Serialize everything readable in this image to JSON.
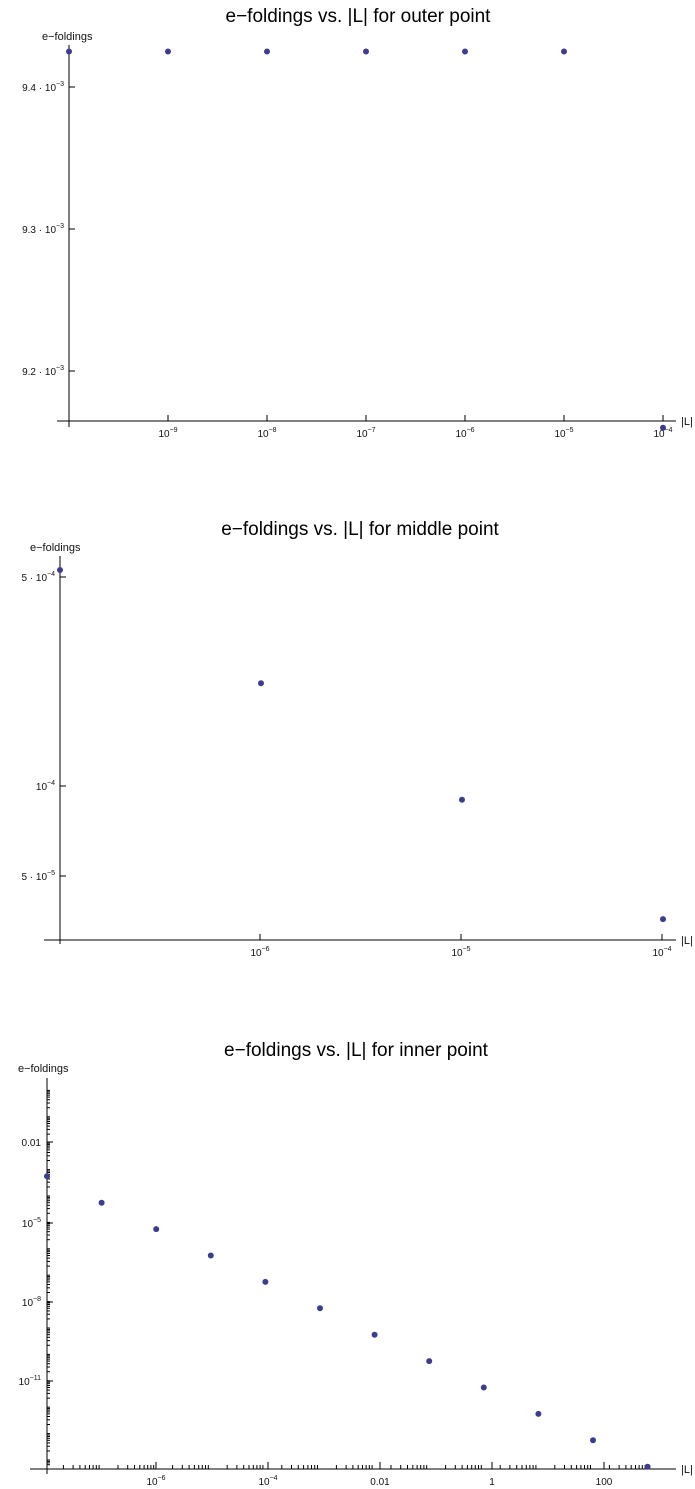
{
  "chart_data": [
    {
      "type": "scatter",
      "title": "e−foldings vs. |L| for outer point",
      "xlabel": "|L|",
      "ylabel": "e−foldings",
      "x_scale": "log",
      "y_scale": "linear",
      "x": [
        1e-10,
        1e-09,
        1e-08,
        1e-07,
        1e-06,
        1e-05,
        0.0001
      ],
      "y": [
        0.009425,
        0.009425,
        0.009425,
        0.009425,
        0.009425,
        0.009425,
        0.00916
      ],
      "xlim": [
        1e-10,
        0.0001
      ],
      "ylim": [
        0.00916,
        0.00943
      ],
      "xticks": [
        "10^-9",
        "10^-8",
        "10^-7",
        "10^-6",
        "10^-5",
        "10^-4"
      ],
      "yticks": [
        "9.2 · 10^-3",
        "9.3 · 10^-3",
        "9.4 · 10^-3"
      ],
      "marker_color": "#3d3d8f"
    },
    {
      "type": "scatter",
      "title": "e−foldings vs. |L| for middle point",
      "xlabel": "|L|",
      "ylabel": "e−foldings",
      "x_scale": "log",
      "y_scale": "log",
      "x": [
        1e-07,
        1e-06,
        1e-05,
        0.0001
      ],
      "y": [
        0.000525,
        0.00022,
        9e-05,
        3.6e-05
      ],
      "xlim": [
        1e-07,
        0.0001
      ],
      "ylim": [
        3.55e-05,
        0.00055
      ],
      "xticks": [
        "10^-6",
        "10^-5",
        "10^-4"
      ],
      "yticks": [
        "5 · 10^-5",
        "10^-4",
        "5 · 10^-4"
      ],
      "marker_color": "#3d3d8f"
    },
    {
      "type": "scatter",
      "title": "e−foldings vs. |L| for inner point",
      "xlabel": "|L|",
      "ylabel": "e−foldings",
      "x_scale": "log",
      "y_scale": "log",
      "x": [
        1e-08,
        1e-07,
        1e-06,
        1e-05,
        0.0001,
        0.001,
        0.01,
        0.1,
        1,
        10,
        100,
        1000
      ],
      "y": [
        0.0005,
        5e-05,
        5e-06,
        5e-07,
        5e-08,
        5e-09,
        5e-10,
        5e-11,
        5e-12,
        5e-13,
        5e-14,
        5e-15
      ],
      "xlim": [
        1e-08,
        1000
      ],
      "ylim": [
        5e-15,
        1
      ],
      "xticks": [
        "10^-6",
        "10^-4",
        "0.01",
        "1",
        "100"
      ],
      "yticks": [
        "10^-11",
        "10^-8",
        "10^-5",
        "0.01"
      ],
      "marker_color": "#3d3d8f"
    }
  ]
}
